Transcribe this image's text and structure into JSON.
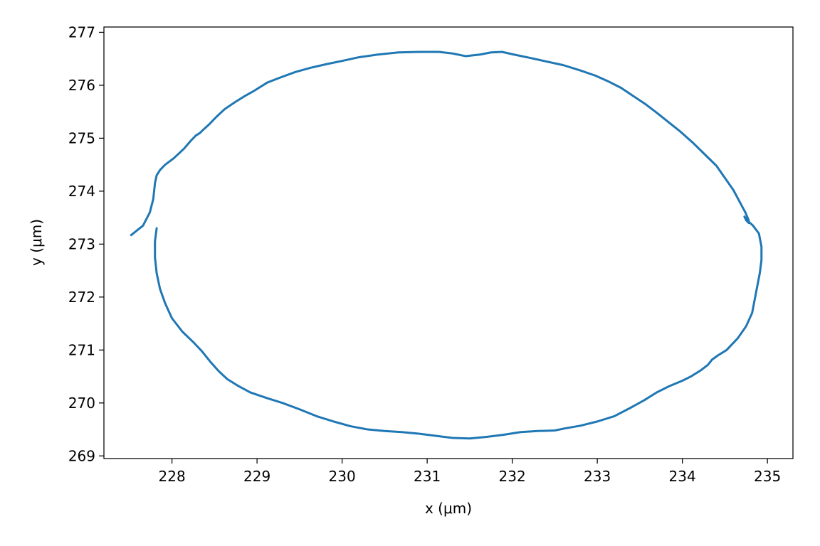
{
  "chart_data": {
    "type": "line",
    "title": "",
    "xlabel": "x (μm)",
    "ylabel": "y (μm)",
    "xlim": [
      227.2,
      235.3
    ],
    "ylim": [
      268.95,
      277.1
    ],
    "x_ticks": [
      228,
      229,
      230,
      231,
      232,
      233,
      234,
      235
    ],
    "y_ticks": [
      269,
      270,
      271,
      272,
      273,
      274,
      275,
      276,
      277
    ],
    "x_tick_labels": [
      "228",
      "229",
      "230",
      "231",
      "232",
      "233",
      "234",
      "235"
    ],
    "y_tick_labels": [
      "269",
      "270",
      "271",
      "272",
      "273",
      "274",
      "275",
      "276",
      "277"
    ],
    "grid": false,
    "legend": "none",
    "series": [
      {
        "color": "#1f77b4",
        "x": [
          227.52,
          227.66,
          227.74,
          227.78,
          227.79,
          227.8,
          227.82,
          227.86,
          227.92,
          228.02,
          228.14,
          228.22,
          228.28,
          228.33,
          228.36,
          228.43,
          228.52,
          228.62,
          228.74,
          228.86,
          228.95,
          229.02,
          229.12,
          229.28,
          229.45,
          229.63,
          229.82,
          230.0,
          230.2,
          230.42,
          230.66,
          230.9,
          231.14,
          231.3,
          231.45,
          231.62,
          231.75,
          231.88,
          232.02,
          232.2,
          232.4,
          232.6,
          232.8,
          232.98,
          233.12,
          233.28,
          233.42,
          233.56,
          233.7,
          233.84,
          233.98,
          234.12,
          234.26,
          234.4,
          234.5,
          234.6,
          234.68,
          234.74,
          234.78,
          234.78,
          234.75,
          234.73,
          234.76,
          234.83,
          234.9,
          234.93,
          234.93,
          234.91,
          234.88,
          234.85,
          234.82,
          234.75,
          234.65,
          234.52,
          234.42,
          234.35,
          234.3,
          234.22,
          234.1,
          234.0,
          233.85,
          233.7,
          233.55,
          233.38,
          233.2,
          233.0,
          232.8,
          232.62,
          232.5,
          232.3,
          232.1,
          231.9,
          231.7,
          231.5,
          231.3,
          231.1,
          230.9,
          230.7,
          230.5,
          230.3,
          230.1,
          229.9,
          229.7,
          229.5,
          229.3,
          229.1,
          228.92,
          228.78,
          228.65,
          228.55,
          228.45,
          228.35,
          228.25,
          228.12,
          228.0,
          227.92,
          227.86,
          227.82,
          227.8,
          227.8,
          227.82
        ],
        "y": [
          273.17,
          273.35,
          273.6,
          273.85,
          274.0,
          274.15,
          274.3,
          274.4,
          274.5,
          274.62,
          274.8,
          274.95,
          275.05,
          275.1,
          275.15,
          275.25,
          275.4,
          275.55,
          275.68,
          275.8,
          275.88,
          275.95,
          276.05,
          276.15,
          276.25,
          276.33,
          276.4,
          276.46,
          276.53,
          276.58,
          276.62,
          276.63,
          276.63,
          276.6,
          276.55,
          276.58,
          276.62,
          276.63,
          276.58,
          276.52,
          276.45,
          276.38,
          276.28,
          276.18,
          276.08,
          275.95,
          275.8,
          275.65,
          275.48,
          275.3,
          275.12,
          274.92,
          274.7,
          274.48,
          274.25,
          274.02,
          273.78,
          273.6,
          273.45,
          273.4,
          273.45,
          273.52,
          273.45,
          273.35,
          273.2,
          272.95,
          272.7,
          272.45,
          272.2,
          271.95,
          271.7,
          271.45,
          271.22,
          271.0,
          270.9,
          270.82,
          270.72,
          270.62,
          270.5,
          270.42,
          270.32,
          270.2,
          270.05,
          269.9,
          269.75,
          269.65,
          269.57,
          269.52,
          269.48,
          269.47,
          269.45,
          269.4,
          269.36,
          269.33,
          269.34,
          269.38,
          269.42,
          269.45,
          269.47,
          269.5,
          269.56,
          269.65,
          269.75,
          269.88,
          270.0,
          270.1,
          270.2,
          270.32,
          270.45,
          270.6,
          270.78,
          270.98,
          271.15,
          271.35,
          271.6,
          271.88,
          272.15,
          272.45,
          272.75,
          273.05,
          273.3
        ]
      }
    ]
  }
}
